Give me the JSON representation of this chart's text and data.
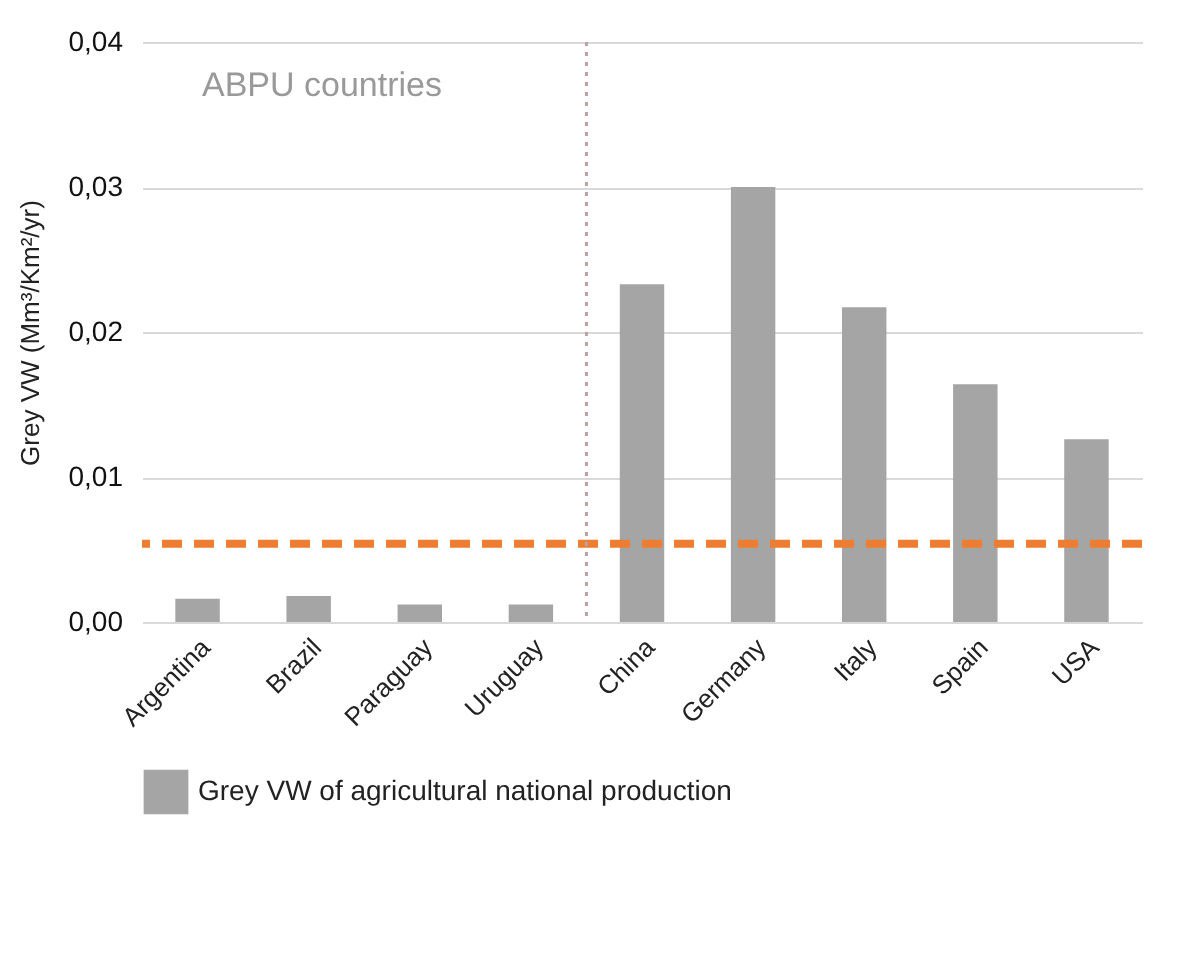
{
  "chart_data": {
    "type": "bar",
    "ylabel": "Grey VW (Mm³/Km²/yr)",
    "categories": [
      "Argentina",
      "Brazil",
      "Paraguay",
      "Uruguay",
      "China",
      "Germany",
      "Italy",
      "Spain",
      "USA"
    ],
    "series": [
      {
        "name": "Grey VW of agricultural national production",
        "color": "#a5a5a5",
        "values": [
          0.0016,
          0.0018,
          0.0012,
          0.0012,
          0.0233,
          0.03,
          0.0217,
          0.0164,
          0.0126
        ]
      }
    ],
    "ylim": [
      0,
      0.04
    ],
    "yticks": [
      {
        "value": 0,
        "label": "0,00"
      },
      {
        "value": 0.01,
        "label": "0,01"
      },
      {
        "value": 0.02,
        "label": "0,02"
      },
      {
        "value": 0.03,
        "label": "0,03"
      },
      {
        "value": 0.04,
        "label": "0,04"
      }
    ],
    "grid": "y",
    "legend": "bottom",
    "ref_lines": [
      {
        "axis": "y",
        "value": 0.0054,
        "color": "#ed7d31",
        "line_style": "dashed"
      },
      {
        "axis": "x",
        "value": "China",
        "color": "#c0a0a0",
        "line_style": "dotted"
      }
    ],
    "annotations": [
      "ABPU countries"
    ]
  }
}
